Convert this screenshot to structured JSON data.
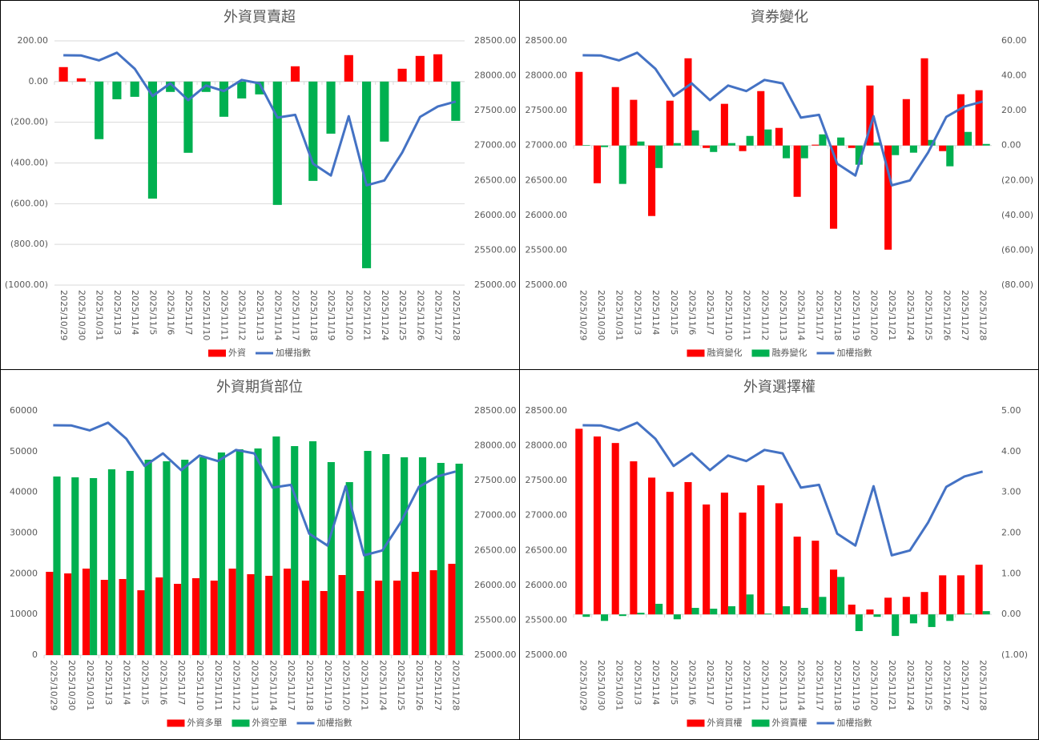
{
  "chart_data": [
    {
      "type": "combo",
      "title": "外資買賣超",
      "categories": [
        "2025/10/29",
        "2025/10/30",
        "2025/10/31",
        "2025/11/3",
        "2025/11/4",
        "2025/11/5",
        "2025/11/6",
        "2025/11/7",
        "2025/11/10",
        "2025/11/11",
        "2025/11/12",
        "2025/11/13",
        "2025/11/14",
        "2025/11/17",
        "2025/11/18",
        "2025/11/19",
        "2025/11/20",
        "2025/11/21",
        "2025/11/24",
        "2025/11/25",
        "2025/11/26",
        "2025/11/27",
        "2025/11/28"
      ],
      "series": [
        {
          "name": "外資",
          "type": "bar",
          "color": "#ff0000",
          "negative_color": "#00b050",
          "values": [
            71,
            16,
            -283,
            -87,
            -75,
            -575,
            -51,
            -350,
            -51,
            -173,
            -83,
            -63,
            -606,
            75,
            -488,
            -256,
            130,
            -917,
            -295,
            63,
            126,
            134,
            -193
          ]
        },
        {
          "name": "加權指數",
          "type": "line",
          "axis": "y2",
          "color": "#4472c4",
          "values": [
            28293,
            28290,
            28220,
            28330,
            28100,
            27710,
            27890,
            27650,
            27860,
            27780,
            27940,
            27890,
            27400,
            27440,
            26740,
            26570,
            27420,
            26430,
            26500,
            26900,
            27410,
            27560,
            27630
          ]
        }
      ],
      "ylim": [
        -1000,
        200
      ],
      "yticks": [
        {
          "value": 200,
          "label": "200.00"
        },
        {
          "value": 0,
          "label": "0.00"
        },
        {
          "value": -200,
          "label": "(200.00)"
        },
        {
          "value": -400,
          "label": "(400.00)"
        },
        {
          "value": -600,
          "label": "(600.00)"
        },
        {
          "value": -800,
          "label": "(800.00)"
        },
        {
          "value": -1000,
          "label": "(1000.00)"
        }
      ],
      "y2lim": [
        25000,
        28500
      ],
      "y2ticks": [
        {
          "value": 25000,
          "label": "25000.00"
        },
        {
          "value": 25500,
          "label": "25500.00"
        },
        {
          "value": 26000,
          "label": "26000.00"
        },
        {
          "value": 26500,
          "label": "26500.00"
        },
        {
          "value": 27000,
          "label": "27000.00"
        },
        {
          "value": 27500,
          "label": "27500.00"
        },
        {
          "value": 28000,
          "label": "28000.00"
        },
        {
          "value": 28500,
          "label": "28500.00"
        }
      ],
      "negative_tick_color": "#ff0000",
      "grid": true
    },
    {
      "type": "combo",
      "title": "資券變化",
      "categories": [
        "2025/10/29",
        "2025/10/30",
        "2025/10/31",
        "2025/11/3",
        "2025/11/4",
        "2025/11/5",
        "2025/11/6",
        "2025/11/7",
        "2025/11/10",
        "2025/11/11",
        "2025/11/12",
        "2025/11/13",
        "2025/11/14",
        "2025/11/17",
        "2025/11/18",
        "2025/11/19",
        "2025/11/20",
        "2025/11/21",
        "2025/11/24",
        "2025/11/25",
        "2025/11/26",
        "2025/11/27",
        "2025/11/28"
      ],
      "series": [
        {
          "name": "融資變化",
          "type": "bar",
          "axis": "y2",
          "color": "#ff0000",
          "values": [
            42.2,
            -21.6,
            33.5,
            26.2,
            -40.4,
            25.7,
            50,
            -1.4,
            23.9,
            -3.2,
            31.2,
            10.1,
            -29.4,
            0.5,
            -47.7,
            -1.4,
            34.4,
            -59.7,
            26.6,
            50,
            -3.2,
            29.4,
            31.7
          ]
        },
        {
          "name": "融券變化",
          "type": "bar",
          "axis": "y2",
          "color": "#00b050",
          "values": [
            0.3,
            -0.9,
            -22,
            2.3,
            -12.9,
            1.4,
            8.7,
            -3.7,
            1.4,
            5.5,
            9.2,
            -7.3,
            -7.3,
            6.4,
            4.6,
            -11,
            1.8,
            -5.5,
            -4.1,
            3.2,
            -11.9,
            7.8,
            0.9
          ]
        },
        {
          "name": "加權指數",
          "type": "line",
          "color": "#4472c4",
          "values": [
            28293,
            28290,
            28220,
            28330,
            28100,
            27710,
            27890,
            27650,
            27860,
            27780,
            27940,
            27890,
            27400,
            27440,
            26740,
            26570,
            27420,
            26430,
            26500,
            26900,
            27410,
            27560,
            27630
          ]
        }
      ],
      "ylim": [
        25000,
        28500
      ],
      "yticks": [
        {
          "value": 25000,
          "label": "25000.00"
        },
        {
          "value": 25500,
          "label": "25500.00"
        },
        {
          "value": 26000,
          "label": "26000.00"
        },
        {
          "value": 26500,
          "label": "26500.00"
        },
        {
          "value": 27000,
          "label": "27000.00"
        },
        {
          "value": 27500,
          "label": "27500.00"
        },
        {
          "value": 28000,
          "label": "28000.00"
        },
        {
          "value": 28500,
          "label": "28500.00"
        }
      ],
      "y2lim": [
        -80,
        60
      ],
      "y2ticks": [
        {
          "value": 60,
          "label": "60.00"
        },
        {
          "value": 40,
          "label": "40.00"
        },
        {
          "value": 20,
          "label": "20.00"
        },
        {
          "value": 0,
          "label": "0.00"
        },
        {
          "value": -20,
          "label": "(20.00)"
        },
        {
          "value": -40,
          "label": "(40.00)"
        },
        {
          "value": -60,
          "label": "(60.00)"
        },
        {
          "value": -80,
          "label": "(80.00)"
        }
      ],
      "negative_tick_color": "#ff0000",
      "grid": false
    },
    {
      "type": "combo",
      "title": "外資期貨部位",
      "categories": [
        "2025/10/29",
        "2025/10/30",
        "2025/10/31",
        "2025/11/3",
        "2025/11/4",
        "2025/11/5",
        "2025/11/6",
        "2025/11/7",
        "2025/11/10",
        "2025/11/11",
        "2025/11/12",
        "2025/11/13",
        "2025/11/14",
        "2025/11/17",
        "2025/11/18",
        "2025/11/19",
        "2025/11/20",
        "2025/11/21",
        "2025/11/24",
        "2025/11/25",
        "2025/11/26",
        "2025/11/27",
        "2025/11/28"
      ],
      "series": [
        {
          "name": "外資多單",
          "type": "bar",
          "color": "#ff0000",
          "values": [
            20460,
            20070,
            21250,
            18490,
            18690,
            15930,
            19080,
            17510,
            18890,
            18300,
            21250,
            19870,
            19480,
            21250,
            18300,
            15740,
            19670,
            15740,
            18300,
            18300,
            20460,
            20850,
            22430
          ]
        },
        {
          "name": "外資空單",
          "type": "bar",
          "color": "#00b050",
          "values": [
            43870,
            43670,
            43480,
            45640,
            45250,
            48000,
            47610,
            48000,
            48590,
            49770,
            50560,
            50760,
            53700,
            51340,
            52530,
            47410,
            42490,
            50160,
            49380,
            48590,
            48590,
            47210,
            47020
          ]
        },
        {
          "name": "加權指數",
          "type": "line",
          "axis": "y2",
          "color": "#4472c4",
          "values": [
            28293,
            28290,
            28220,
            28330,
            28100,
            27710,
            27890,
            27650,
            27860,
            27780,
            27940,
            27890,
            27400,
            27440,
            26740,
            26570,
            27420,
            26430,
            26500,
            26900,
            27410,
            27560,
            27630
          ]
        }
      ],
      "ylim": [
        0,
        60000
      ],
      "yticks": [
        0,
        10000,
        20000,
        30000,
        40000,
        50000,
        60000
      ],
      "y2lim": [
        25000,
        28500
      ],
      "y2ticks": [
        {
          "value": 25000,
          "label": "25000.00"
        },
        {
          "value": 25500,
          "label": "25500.00"
        },
        {
          "value": 26000,
          "label": "26000.00"
        },
        {
          "value": 26500,
          "label": "26500.00"
        },
        {
          "value": 27000,
          "label": "27000.00"
        },
        {
          "value": 27500,
          "label": "27500.00"
        },
        {
          "value": 28000,
          "label": "28000.00"
        },
        {
          "value": 28500,
          "label": "28500.00"
        }
      ],
      "grid": false
    },
    {
      "type": "combo",
      "title": "外資選擇權",
      "categories": [
        "2025/10/29",
        "2025/10/30",
        "2025/10/31",
        "2025/11/3",
        "2025/11/4",
        "2025/11/5",
        "2025/11/6",
        "2025/11/7",
        "2025/11/10",
        "2025/11/11",
        "2025/11/12",
        "2025/11/13",
        "2025/11/14",
        "2025/11/17",
        "2025/11/18",
        "2025/11/19",
        "2025/11/20",
        "2025/11/21",
        "2025/11/24",
        "2025/11/25",
        "2025/11/26",
        "2025/11/27",
        "2025/11/28"
      ],
      "series": [
        {
          "name": "外資買權",
          "type": "bar",
          "axis": "y2",
          "color": "#ff0000",
          "values": [
            4.56,
            4.37,
            4.21,
            3.76,
            3.36,
            3.01,
            3.25,
            2.7,
            2.99,
            2.5,
            3.17,
            2.73,
            1.91,
            1.81,
            1.1,
            0.24,
            0.12,
            0.41,
            0.43,
            0.55,
            0.96,
            0.96,
            1.22
          ]
        },
        {
          "name": "外資賣權",
          "type": "bar",
          "axis": "y2",
          "color": "#00b050",
          "values": [
            -0.06,
            -0.16,
            -0.04,
            0.04,
            0.26,
            -0.12,
            0.16,
            0.14,
            0.2,
            0.49,
            0.02,
            0.2,
            0.16,
            0.43,
            0.92,
            -0.41,
            -0.06,
            -0.53,
            -0.22,
            -0.31,
            -0.16,
            0.02,
            0.08
          ]
        },
        {
          "name": "加權指數",
          "type": "line",
          "color": "#4472c4",
          "values": [
            28293,
            28290,
            28220,
            28330,
            28100,
            27710,
            27890,
            27650,
            27860,
            27780,
            27940,
            27890,
            27400,
            27440,
            26740,
            26570,
            27420,
            26430,
            26500,
            26900,
            27410,
            27560,
            27630
          ]
        }
      ],
      "ylim": [
        25000,
        28500
      ],
      "yticks": [
        {
          "value": 25000,
          "label": "25000.00"
        },
        {
          "value": 25500,
          "label": "25500.00"
        },
        {
          "value": 26000,
          "label": "26000.00"
        },
        {
          "value": 26500,
          "label": "26500.00"
        },
        {
          "value": 27000,
          "label": "27000.00"
        },
        {
          "value": 27500,
          "label": "27500.00"
        },
        {
          "value": 28000,
          "label": "28000.00"
        },
        {
          "value": 28500,
          "label": "28500.00"
        }
      ],
      "y2lim": [
        -1,
        5
      ],
      "y2ticks": [
        {
          "value": 5,
          "label": "5.00"
        },
        {
          "value": 4,
          "label": "4.00"
        },
        {
          "value": 3,
          "label": "3.00"
        },
        {
          "value": 2,
          "label": "2.00"
        },
        {
          "value": 1,
          "label": "1.00"
        },
        {
          "value": 0,
          "label": "0.00"
        },
        {
          "value": -1,
          "label": "(1.00)"
        }
      ],
      "negative_tick_color": "#ff0000",
      "grid": false
    }
  ]
}
